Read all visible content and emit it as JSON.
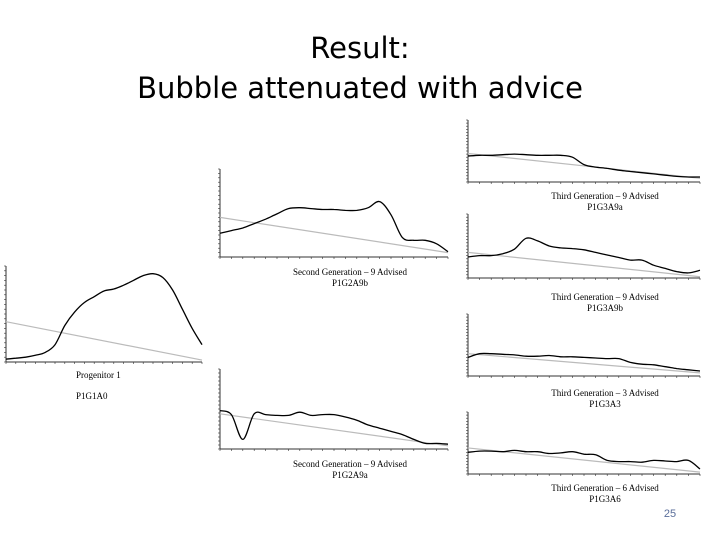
{
  "slide": {
    "title_line1": "Result:",
    "title_line2": "Bubble attenuated with advice",
    "page_number": "25"
  },
  "colors": {
    "curve": "#000000",
    "trend": "#bbbbbb",
    "axis": "#333333",
    "page_number": "#5a6e9a"
  },
  "chart_data": [
    {
      "type": "line",
      "caption_line1": "Progenitor 1",
      "caption_line2": "P1G1A0",
      "x": [
        0,
        1,
        2,
        3,
        4,
        5,
        6,
        7,
        8,
        9,
        10,
        11,
        12,
        13,
        14,
        15,
        16,
        17,
        18,
        19,
        20
      ],
      "series": [
        {
          "values": [
            0.03,
            0.04,
            0.05,
            0.07,
            0.1,
            0.18,
            0.38,
            0.52,
            0.62,
            0.68,
            0.74,
            0.76,
            0.8,
            0.85,
            0.9,
            0.92,
            0.88,
            0.75,
            0.55,
            0.35,
            0.18
          ]
        },
        {
          "values": [
            0.42,
            0.4,
            0.38,
            0.36,
            0.34,
            0.32,
            0.3,
            0.28,
            0.26,
            0.24,
            0.22,
            0.2,
            0.18,
            0.16,
            0.14,
            0.12,
            0.1,
            0.08,
            0.06,
            0.04,
            0.02
          ]
        }
      ],
      "ylim": [
        0,
        1
      ]
    },
    {
      "type": "line",
      "caption_line1": "Second Generation – 9 Advised",
      "caption_line2": "P1G2A9b",
      "x": [
        0,
        1,
        2,
        3,
        4,
        5,
        6,
        7,
        8,
        9,
        10,
        11,
        12,
        13,
        14,
        15,
        16,
        17,
        18,
        19,
        20
      ],
      "series": [
        {
          "values": [
            0.27,
            0.3,
            0.33,
            0.38,
            0.43,
            0.49,
            0.55,
            0.56,
            0.55,
            0.54,
            0.54,
            0.53,
            0.53,
            0.56,
            0.63,
            0.48,
            0.22,
            0.19,
            0.19,
            0.15,
            0.06
          ]
        },
        {
          "values": [
            0.45,
            0.43,
            0.41,
            0.39,
            0.37,
            0.35,
            0.33,
            0.31,
            0.29,
            0.27,
            0.25,
            0.23,
            0.21,
            0.19,
            0.17,
            0.15,
            0.13,
            0.11,
            0.09,
            0.07,
            0.05
          ]
        }
      ],
      "ylim": [
        0,
        1
      ]
    },
    {
      "type": "line",
      "caption_line1": "Second Generation – 9 Advised",
      "caption_line2": "P1G2A9a",
      "x": [
        0,
        1,
        2,
        3,
        4,
        5,
        6,
        7,
        8,
        9,
        10,
        11,
        12,
        13,
        14,
        15,
        16,
        17,
        18,
        19,
        20
      ],
      "series": [
        {
          "values": [
            0.48,
            0.43,
            0.12,
            0.44,
            0.43,
            0.42,
            0.42,
            0.46,
            0.42,
            0.43,
            0.43,
            0.4,
            0.36,
            0.3,
            0.26,
            0.22,
            0.18,
            0.12,
            0.07,
            0.07,
            0.06
          ]
        },
        {
          "values": [
            0.44,
            0.42,
            0.4,
            0.38,
            0.36,
            0.34,
            0.32,
            0.3,
            0.28,
            0.26,
            0.24,
            0.22,
            0.2,
            0.18,
            0.16,
            0.14,
            0.12,
            0.1,
            0.08,
            0.06,
            0.04
          ]
        }
      ],
      "ylim": [
        0,
        1
      ]
    },
    {
      "type": "line",
      "caption_line1": "Third Generation – 9 Advised",
      "caption_line2": "P1G3A9a",
      "x": [
        0,
        1,
        2,
        3,
        4,
        5,
        6,
        7,
        8,
        9,
        10,
        11,
        12,
        13,
        14,
        15,
        16,
        17,
        18,
        19,
        20
      ],
      "series": [
        {
          "values": [
            0.42,
            0.43,
            0.43,
            0.44,
            0.45,
            0.44,
            0.43,
            0.43,
            0.43,
            0.4,
            0.28,
            0.24,
            0.22,
            0.19,
            0.17,
            0.15,
            0.13,
            0.11,
            0.09,
            0.08,
            0.08
          ]
        },
        {
          "values": [
            0.46,
            0.44,
            0.42,
            0.4,
            0.38,
            0.36,
            0.34,
            0.32,
            0.3,
            0.28,
            0.26,
            0.24,
            0.22,
            0.2,
            0.18,
            0.16,
            0.14,
            0.12,
            0.1,
            0.08,
            0.06
          ]
        }
      ],
      "ylim": [
        0,
        1
      ]
    },
    {
      "type": "line",
      "caption_line1": "Third Generation – 9 Advised",
      "caption_line2": "P1G3A9b",
      "x": [
        0,
        1,
        2,
        3,
        4,
        5,
        6,
        7,
        8,
        9,
        10,
        11,
        12,
        13,
        14,
        15,
        16,
        17,
        18,
        19,
        20
      ],
      "series": [
        {
          "values": [
            0.33,
            0.35,
            0.35,
            0.38,
            0.45,
            0.62,
            0.58,
            0.5,
            0.47,
            0.46,
            0.44,
            0.4,
            0.36,
            0.32,
            0.28,
            0.28,
            0.2,
            0.15,
            0.1,
            0.08,
            0.12
          ]
        },
        {
          "values": [
            0.4,
            0.38,
            0.36,
            0.34,
            0.32,
            0.3,
            0.28,
            0.26,
            0.24,
            0.22,
            0.2,
            0.18,
            0.16,
            0.14,
            0.12,
            0.1,
            0.08,
            0.06,
            0.04,
            0.03,
            0.02
          ]
        }
      ],
      "ylim": [
        0,
        1
      ]
    },
    {
      "type": "line",
      "caption_line1": "Third Generation – 3 Advised",
      "caption_line2": "P1G3A3",
      "x": [
        0,
        1,
        2,
        3,
        4,
        5,
        6,
        7,
        8,
        9,
        10,
        11,
        12,
        13,
        14,
        15,
        16,
        17,
        18,
        19,
        20
      ],
      "series": [
        {
          "values": [
            0.3,
            0.36,
            0.36,
            0.35,
            0.34,
            0.32,
            0.32,
            0.33,
            0.31,
            0.31,
            0.3,
            0.29,
            0.28,
            0.28,
            0.22,
            0.19,
            0.18,
            0.15,
            0.12,
            0.1,
            0.08
          ]
        },
        {
          "values": [
            0.36,
            0.35,
            0.34,
            0.33,
            0.32,
            0.31,
            0.3,
            0.29,
            0.28,
            0.26,
            0.24,
            0.22,
            0.2,
            0.18,
            0.16,
            0.14,
            0.12,
            0.1,
            0.08,
            0.06,
            0.05
          ]
        }
      ],
      "ylim": [
        0,
        1
      ]
    },
    {
      "type": "line",
      "caption_line1": "Third Generation – 6 Advised",
      "caption_line2": "P1G3A6",
      "x": [
        0,
        1,
        2,
        3,
        4,
        5,
        6,
        7,
        8,
        9,
        10,
        11,
        12,
        13,
        14,
        15,
        16,
        17,
        18,
        19,
        20
      ],
      "series": [
        {
          "values": [
            0.35,
            0.37,
            0.37,
            0.36,
            0.38,
            0.36,
            0.36,
            0.33,
            0.34,
            0.36,
            0.32,
            0.31,
            0.22,
            0.2,
            0.2,
            0.19,
            0.22,
            0.21,
            0.2,
            0.22,
            0.08
          ]
        },
        {
          "values": [
            0.42,
            0.4,
            0.38,
            0.36,
            0.34,
            0.32,
            0.3,
            0.28,
            0.26,
            0.24,
            0.22,
            0.2,
            0.18,
            0.16,
            0.14,
            0.12,
            0.1,
            0.08,
            0.06,
            0.04,
            0.03
          ]
        }
      ],
      "ylim": [
        0,
        1
      ]
    }
  ]
}
